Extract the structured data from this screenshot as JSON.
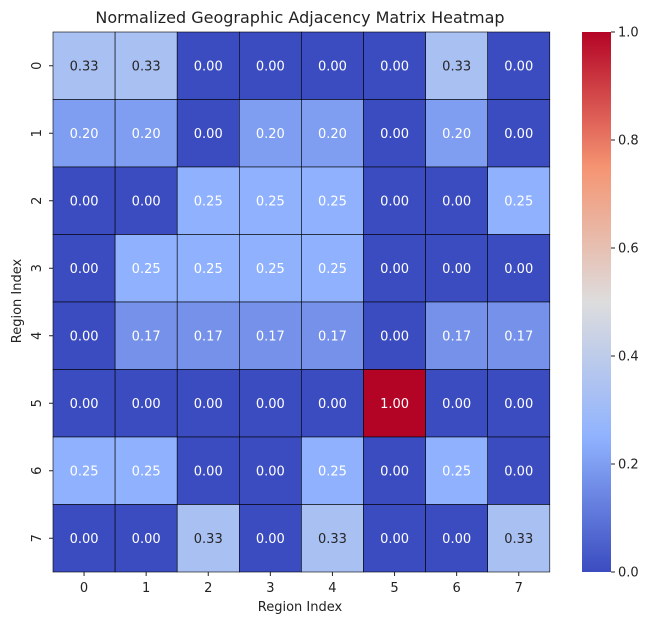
{
  "chart_data": {
    "type": "heatmap",
    "title": "Normalized Geographic Adjacency Matrix Heatmap",
    "xlabel": "Region Index",
    "ylabel": "Region Index",
    "x_ticks": [
      "0",
      "1",
      "2",
      "3",
      "4",
      "5",
      "6",
      "7"
    ],
    "y_ticks": [
      "0",
      "1",
      "2",
      "3",
      "4",
      "5",
      "6",
      "7"
    ],
    "values": [
      [
        0.33,
        0.33,
        0.0,
        0.0,
        0.0,
        0.0,
        0.33,
        0.0
      ],
      [
        0.2,
        0.2,
        0.0,
        0.2,
        0.2,
        0.0,
        0.2,
        0.0
      ],
      [
        0.0,
        0.0,
        0.25,
        0.25,
        0.25,
        0.0,
        0.0,
        0.25
      ],
      [
        0.0,
        0.25,
        0.25,
        0.25,
        0.25,
        0.0,
        0.0,
        0.0
      ],
      [
        0.0,
        0.17,
        0.17,
        0.17,
        0.17,
        0.0,
        0.17,
        0.17
      ],
      [
        0.0,
        0.0,
        0.0,
        0.0,
        0.0,
        1.0,
        0.0,
        0.0
      ],
      [
        0.25,
        0.25,
        0.0,
        0.0,
        0.25,
        0.0,
        0.25,
        0.0
      ],
      [
        0.0,
        0.0,
        0.33,
        0.0,
        0.33,
        0.0,
        0.0,
        0.33
      ]
    ],
    "annotation_format": "0.00",
    "colormap": "coolwarm",
    "vmin": 0.0,
    "vmax": 1.0,
    "colorbar_ticks": [
      "0.0",
      "0.2",
      "0.4",
      "0.6",
      "0.8",
      "1.0"
    ],
    "colors": {
      "low": "#3b4cc0",
      "mid": "#dddddd",
      "high": "#b40426",
      "cell_border": "#000000"
    }
  }
}
